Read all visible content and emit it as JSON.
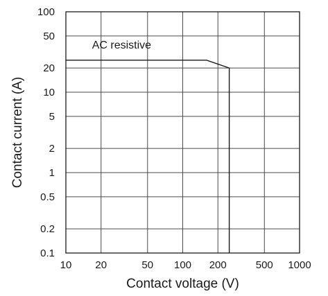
{
  "chart_data": {
    "type": "line",
    "xlabel": "Contact voltage (V)",
    "ylabel": "Contact current (A)",
    "x_scale": "log",
    "y_scale": "log",
    "xlim": [
      10,
      1000
    ],
    "ylim": [
      0.1,
      100
    ],
    "x_ticks": [
      10,
      20,
      50,
      100,
      200,
      500,
      1000
    ],
    "y_ticks": [
      0.1,
      0.2,
      0.5,
      1,
      2,
      5,
      10,
      20,
      50,
      100
    ],
    "x_tick_labels": [
      "10",
      "20",
      "50",
      "100",
      "200",
      "500",
      "1000"
    ],
    "y_tick_labels": [
      "0.1",
      "0.2",
      "0.5",
      "1",
      "2",
      "5",
      "10",
      "20",
      "50",
      "100"
    ],
    "grid": true,
    "series": [
      {
        "name": "AC resistive",
        "x": [
          10,
          160,
          250,
          250
        ],
        "y": [
          25,
          25,
          20,
          0.1
        ]
      }
    ],
    "annotations": [
      {
        "text": "AC resistive",
        "x": 30,
        "y": 35
      }
    ]
  }
}
